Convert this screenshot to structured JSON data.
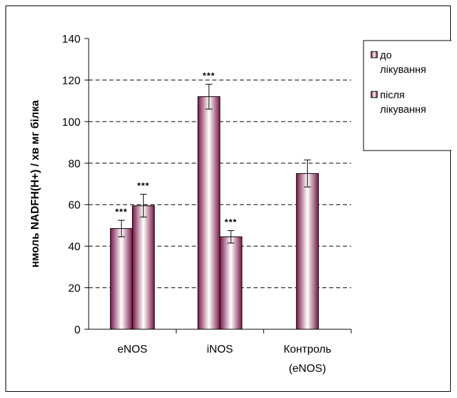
{
  "chart_data": {
    "type": "bar",
    "categories": [
      {
        "line1": "eNOS",
        "line2": ""
      },
      {
        "line1": "iNOS",
        "line2": ""
      },
      {
        "line1": "Контроль",
        "line2": "(eNOS)"
      }
    ],
    "series": [
      {
        "name_lines": [
          "до",
          "лікування"
        ],
        "values": [
          48.5,
          112,
          75
        ],
        "errors": [
          4,
          6,
          6.5
        ],
        "sig": [
          "***",
          "***",
          ""
        ]
      },
      {
        "name_lines": [
          "після",
          "лікування"
        ],
        "values": [
          59.5,
          44.5,
          null
        ],
        "errors": [
          5.5,
          3,
          null
        ],
        "sig": [
          "***",
          "***",
          ""
        ]
      }
    ],
    "ylabel": "нмоль NADFH(H+) / хв мг білка",
    "ylim": [
      0,
      140
    ],
    "yticks": [
      "0",
      "20",
      "40",
      "60",
      "80",
      "100",
      "120",
      "140"
    ],
    "grid": "dashed-horizontal",
    "legend_position": "right",
    "colors": {
      "bar_edge": "#7a1848",
      "bar_center": "#ffffff",
      "error": "#000000",
      "grid": "#000000"
    }
  }
}
